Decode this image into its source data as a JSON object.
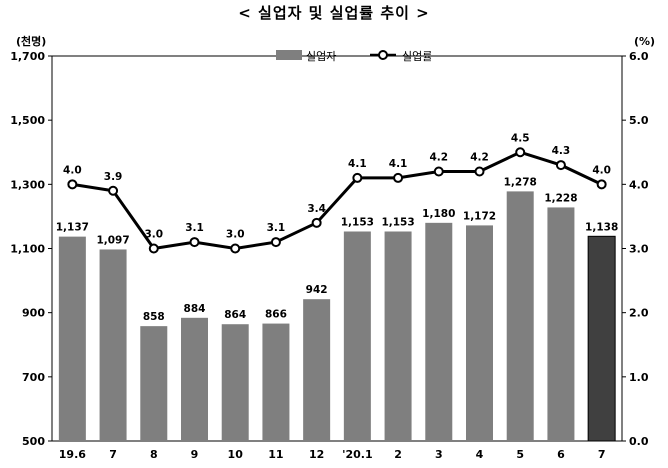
{
  "title": "< 실업자 및 실업률 추이 >",
  "chart_data": {
    "type": "bar",
    "categories": [
      "19.6",
      "7",
      "8",
      "9",
      "10",
      "11",
      "12",
      "'20.1",
      "2",
      "3",
      "4",
      "5",
      "6",
      "7"
    ],
    "series": [
      {
        "name": "실업자",
        "type": "bar",
        "axis": "left",
        "values": [
          1137,
          1097,
          858,
          884,
          864,
          866,
          942,
          1153,
          1153,
          1180,
          1172,
          1278,
          1228,
          1138
        ],
        "labels": [
          "1,137",
          "1,097",
          "858",
          "884",
          "864",
          "866",
          "942",
          "1,153",
          "1,153",
          "1,180",
          "1,172",
          "1,278",
          "1,228",
          "1,138"
        ],
        "color": "#7f7f7f",
        "highlight_last_color": "#404040"
      },
      {
        "name": "실업률",
        "type": "line",
        "axis": "right",
        "values": [
          4.0,
          3.9,
          3.0,
          3.1,
          3.0,
          3.1,
          3.4,
          4.1,
          4.1,
          4.2,
          4.2,
          4.5,
          4.3,
          4.0
        ],
        "labels": [
          "4.0",
          "3.9",
          "3.0",
          "3.1",
          "3.0",
          "3.1",
          "3.4",
          "4.1",
          "4.1",
          "4.2",
          "4.2",
          "4.5",
          "4.3",
          "4.0"
        ],
        "color": "#000000"
      }
    ],
    "left_axis": {
      "unit": "(천명)",
      "ylim": [
        500,
        1700
      ],
      "ticks": [
        500,
        700,
        900,
        1100,
        1300,
        1500,
        1700
      ],
      "tick_labels": [
        "500",
        "700",
        "900",
        "1,100",
        "1,300",
        "1,500",
        "1,700"
      ]
    },
    "right_axis": {
      "unit": "(%)",
      "ylim": [
        0.0,
        6.0
      ],
      "ticks": [
        0,
        1,
        2,
        3,
        4,
        5,
        6
      ],
      "tick_labels": [
        "0.0",
        "1.0",
        "2.0",
        "3.0",
        "4.0",
        "5.0",
        "6.0"
      ]
    },
    "grid": false,
    "legend_position": "top-center"
  }
}
